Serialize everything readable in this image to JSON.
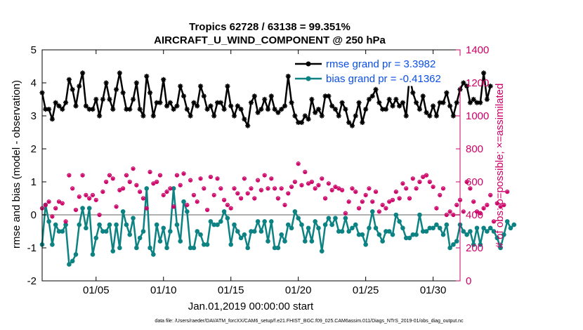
{
  "chart_data": {
    "type": "line",
    "title": "Tropics 62728 / 63138 = 99.351%",
    "subtitle": "AIRCRAFT_U_WIND_COMPONENT @ 250 hPa",
    "xlabel": "Jan.01,2019 00:00:00 start",
    "ylabel": "rmse and bias (model - observation)",
    "y2label": "# of obs: o=possible; ×=assimilated",
    "footnote": "data file: /Users/raeder/DAI/ATM_forcXX/CAM6_setup/f.e21.FHIST_BGC.f09_025.CAM6assim.011/Diags_NTrS_2019-01/obs_diag_output.nc",
    "xlim": [
      1,
      32
    ],
    "ylim": [
      -2,
      5
    ],
    "y2lim": [
      0,
      1400
    ],
    "xticks": [
      5,
      10,
      15,
      20,
      25,
      30
    ],
    "xtick_labels": [
      "01/05",
      "01/10",
      "01/15",
      "01/20",
      "01/25",
      "01/30"
    ],
    "yticks": [
      -2,
      -1,
      0,
      1,
      2,
      3,
      4,
      5
    ],
    "ytick_labels": [
      "-2",
      "-1",
      "0",
      "1",
      "2",
      "3",
      "4",
      "5"
    ],
    "y2ticks": [
      0,
      200,
      400,
      600,
      800,
      1000,
      1200,
      1400
    ],
    "y2tick_labels": [
      "0",
      "200",
      "400",
      "600",
      "800",
      "1000",
      "1200",
      "1400"
    ],
    "legend_position": "top-right",
    "series": [
      {
        "name": "rmse grand pr = 3.3982",
        "color": "#000000",
        "marker": "asterisk",
        "axis": "left",
        "x_start": 1.0,
        "x_step": 0.25,
        "values": [
          3.7,
          3.2,
          3.2,
          2.9,
          3.4,
          3.3,
          3.2,
          3.4,
          4.1,
          3.8,
          3.3,
          3.9,
          4.3,
          3.3,
          3.2,
          3.2,
          3.5,
          3.0,
          3.5,
          4.0,
          3.5,
          3.2,
          3.8,
          4.3,
          3.7,
          3.2,
          3.2,
          3.5,
          4.0,
          3.2,
          3.0,
          4.2,
          3.7,
          3.0,
          3.4,
          3.4,
          4.1,
          3.3,
          3.4,
          3.2,
          3.3,
          3.9,
          3.6,
          3.2,
          3.0,
          3.4,
          3.3,
          3.9,
          3.6,
          3.2,
          3.3,
          3.0,
          3.4,
          3.4,
          3.2,
          3.9,
          3.3,
          3.0,
          3.3,
          3.2,
          2.9,
          2.7,
          3.4,
          3.6,
          3.1,
          3.2,
          3.5,
          3.2,
          3.6,
          3.2,
          3.1,
          3.2,
          3.3,
          4.2,
          3.4,
          3.0,
          2.8,
          2.8,
          3.0,
          2.9,
          3.5,
          3.1,
          3.2,
          3.0,
          3.6,
          3.6,
          3.3,
          3.2,
          3.0,
          3.4,
          3.2,
          2.8,
          2.7,
          3.0,
          3.4,
          2.8,
          3.2,
          3.5,
          3.6,
          3.8,
          3.4,
          3.2,
          3.2,
          3.5,
          3.3,
          3.5,
          3.3,
          3.4,
          3.0,
          4.2,
          3.7,
          3.4,
          3.2,
          3.6,
          3.1,
          3.0,
          3.3,
          3.0,
          3.4,
          3.4,
          3.7,
          3.3,
          3.0,
          3.4,
          3.8,
          4.0,
          3.9,
          3.4,
          3.5,
          3.4,
          3.4,
          4.3,
          3.5,
          3.9
        ]
      },
      {
        "name": "bias grand pr = -0.41362",
        "color": "#0d8282",
        "marker": "circle",
        "axis": "left",
        "x_start": 1.0,
        "x_step": 0.25,
        "values": [
          -0.9,
          0.3,
          -0.2,
          -0.9,
          -0.3,
          -0.5,
          -0.5,
          -0.3,
          -1.5,
          -1.4,
          -1.2,
          -0.3,
          0.2,
          -0.4,
          0.2,
          -1.2,
          -0.7,
          -0.3,
          -0.5,
          -0.5,
          -0.3,
          -1.1,
          -0.3,
          -1.0,
          0.1,
          -0.3,
          -0.6,
          -0.1,
          -1.0,
          -0.7,
          -0.5,
          0.8,
          -1.0,
          -1.2,
          -0.3,
          -0.8,
          -0.4,
          -1.0,
          -0.5,
          0.8,
          -0.3,
          -0.8,
          0.4,
          0.1,
          -1.0,
          -1.0,
          -0.5,
          -0.6,
          -0.9,
          -0.9,
          -0.2,
          -0.3,
          -0.3,
          -0.2,
          0.1,
          -0.1,
          -0.9,
          -0.3,
          -0.5,
          -0.7,
          -0.6,
          -1.0,
          -0.5,
          -0.5,
          -0.2,
          -0.5,
          -0.2,
          -0.8,
          -0.2,
          -1.0,
          -1.0,
          -0.6,
          -0.8,
          -0.3,
          -0.4,
          0.1,
          -0.1,
          -0.3,
          -0.8,
          -0.4,
          -0.8,
          -0.2,
          -0.4,
          -1.1,
          -0.3,
          -0.1,
          -0.3,
          -0.1,
          -0.5,
          -0.5,
          -0.1,
          -0.5,
          -0.4,
          -0.3,
          -0.6,
          -0.6,
          -0.9,
          -0.4,
          0.1,
          -0.4,
          -0.6,
          -0.8,
          -0.5,
          -0.5,
          -0.6,
          0.0,
          -0.2,
          -0.4,
          -0.7,
          -0.7,
          -0.6,
          -0.6,
          0.0,
          -0.5,
          -0.5,
          -0.4,
          -0.4,
          -0.3,
          -0.4,
          -0.6,
          -0.3,
          -1.0,
          -0.9,
          -0.8,
          -0.3,
          -0.5,
          -0.6,
          -0.5,
          -0.9,
          -0.4,
          -0.9,
          -0.4,
          -0.5,
          -0.4,
          -0.5,
          -0.7,
          -1.0,
          -0.6,
          -0.2,
          -0.4,
          -0.3
        ]
      },
      {
        "name": "# obs possible",
        "color": "#cc0066",
        "marker": "open-circle",
        "axis": "right",
        "x_start": 1.0,
        "x_step": 0.25,
        "values": [
          440,
          460,
          480,
          390,
          440,
          480,
          470,
          360,
          640,
          560,
          430,
          510,
          640,
          520,
          500,
          520,
          490,
          400,
          540,
          600,
          640,
          620,
          450,
          550,
          560,
          640,
          600,
          680,
          580,
          540,
          500,
          440,
          660,
          590,
          600,
          640,
          520,
          540,
          560,
          450,
          640,
          580,
          650,
          460,
          610,
          520,
          480,
          620,
          560,
          430,
          630,
          520,
          620,
          560,
          490,
          460,
          440,
          560,
          530,
          500,
          620,
          530,
          560,
          500,
          610,
          550,
          640,
          560,
          620,
          560,
          500,
          560,
          460,
          530,
          570,
          600,
          710,
          580,
          660,
          590,
          600,
          560,
          580,
          620,
          500,
          590,
          550,
          570,
          560,
          550,
          410,
          480,
          560,
          540,
          440,
          480,
          520,
          560,
          480,
          540,
          420,
          460,
          440,
          480,
          490,
          540,
          500,
          590,
          560,
          500,
          620,
          560,
          600,
          630,
          640,
          600,
          570,
          440,
          520,
          560,
          400,
          420,
          400,
          460,
          490,
          420,
          600,
          560,
          480,
          420,
          410,
          440,
          460,
          520,
          360,
          470,
          450,
          460,
          540
        ]
      },
      {
        "name": "# obs assimilated",
        "color": "#cc0066",
        "marker": "asterisk",
        "axis": "right",
        "x_start": 1.0,
        "x_step": 0.25,
        "values": [
          438,
          458,
          478,
          388,
          438,
          478,
          468,
          358,
          638,
          558,
          428,
          508,
          638,
          518,
          498,
          518,
          488,
          398,
          538,
          598,
          638,
          618,
          448,
          548,
          558,
          638,
          598,
          678,
          578,
          538,
          498,
          438,
          658,
          588,
          598,
          638,
          518,
          538,
          558,
          448,
          638,
          578,
          648,
          458,
          608,
          518,
          478,
          618,
          558,
          428,
          628,
          518,
          618,
          558,
          488,
          458,
          438,
          558,
          528,
          498,
          618,
          528,
          558,
          498,
          608,
          548,
          638,
          558,
          618,
          558,
          498,
          558,
          458,
          528,
          568,
          598,
          708,
          578,
          658,
          588,
          598,
          558,
          578,
          618,
          498,
          588,
          548,
          568,
          558,
          548,
          408,
          478,
          558,
          538,
          438,
          478,
          518,
          558,
          478,
          538,
          418,
          458,
          438,
          478,
          488,
          538,
          498,
          588,
          558,
          498,
          618,
          558,
          598,
          628,
          638,
          598,
          568,
          438,
          518,
          558,
          398,
          418,
          398,
          458,
          488,
          418,
          598,
          558,
          478,
          418,
          408,
          438,
          458,
          518,
          358,
          468,
          448,
          458,
          538
        ]
      }
    ]
  }
}
